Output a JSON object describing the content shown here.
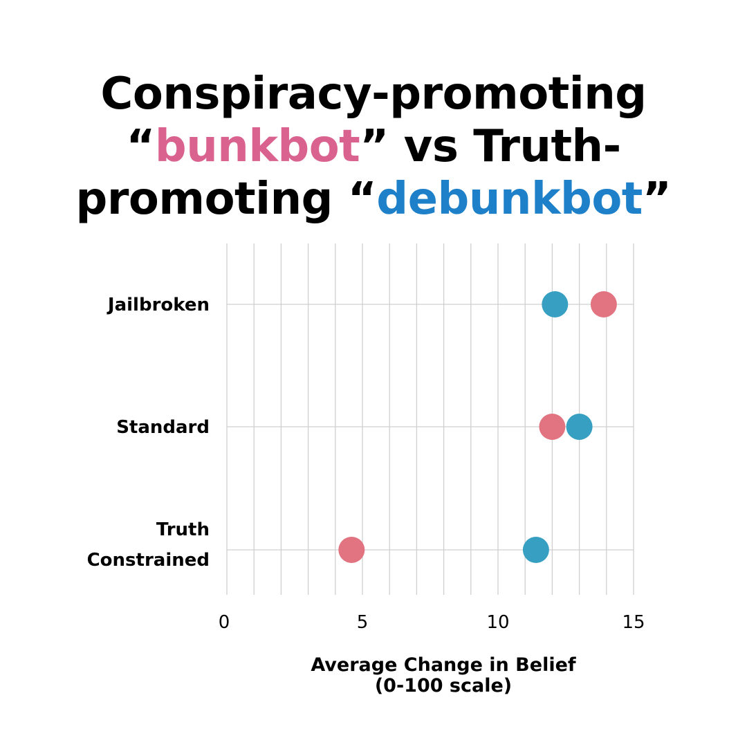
{
  "chart_data": {
    "type": "scatter",
    "title_parts": {
      "line1": "Conspiracy-promoting",
      "open_quote1": "“",
      "bunkbot": "bunkbot",
      "mid": "” vs Truth-",
      "line3_start": "promoting “",
      "debunkbot": "debunkbot",
      "close_quote": "”"
    },
    "categories": [
      "Jailbroken",
      "Standard",
      [
        "Truth",
        "Constrained"
      ]
    ],
    "series": [
      {
        "name": "bunkbot",
        "color": "#e27380",
        "values": [
          13.9,
          12.0,
          4.6
        ]
      },
      {
        "name": "debunkbot",
        "color": "#369fc2",
        "values": [
          12.1,
          13.0,
          11.4
        ]
      }
    ],
    "xlim": [
      0,
      15
    ],
    "xticks": [
      "0",
      "5",
      "10",
      "15"
    ],
    "xlabel": [
      "Average Change in Belief",
      "(0-100 scale)"
    ],
    "grid": true
  }
}
